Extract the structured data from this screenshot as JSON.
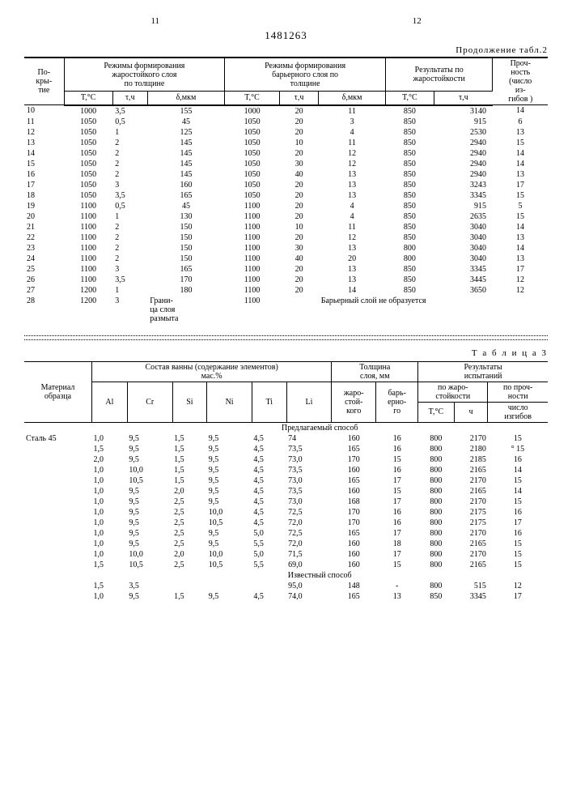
{
  "page_left": "11",
  "page_right": "12",
  "doc_number": "1481263",
  "table2": {
    "continuation": "Продолжение табл.2",
    "headers": {
      "coating": "По-\nкры-\nтие",
      "heat_layer": "Режимы формирования\nжаростойкого слоя\nпо толщине",
      "barrier_layer": "Режимы формирования\nбарьерного слоя по\nтолщине",
      "results": "Результаты по\nжаростойкости",
      "strength": "Проч-\nность\n(число\nиз-\nгибов )",
      "T": "T,°C",
      "t": "τ,ч",
      "d": "δ,мкм"
    },
    "rows": [
      {
        "n": "10",
        "t1": "1000",
        "h1": "3,5",
        "d1": "155",
        "t2": "1000",
        "h2": "20",
        "d2": "11",
        "rt": "850",
        "rh": "3140",
        "s": "14"
      },
      {
        "n": "11",
        "t1": "1050",
        "h1": "0,5",
        "d1": "45",
        "t2": "1050",
        "h2": "20",
        "d2": "3",
        "rt": "850",
        "rh": "915",
        "s": "6"
      },
      {
        "n": "12",
        "t1": "1050",
        "h1": "1",
        "d1": "125",
        "t2": "1050",
        "h2": "20",
        "d2": "4",
        "rt": "850",
        "rh": "2530",
        "s": "13"
      },
      {
        "n": "13",
        "t1": "1050",
        "h1": "2",
        "d1": "145",
        "t2": "1050",
        "h2": "10",
        "d2": "11",
        "rt": "850",
        "rh": "2940",
        "s": "15"
      },
      {
        "n": "14",
        "t1": "1050",
        "h1": "2",
        "d1": "145",
        "t2": "1050",
        "h2": "20",
        "d2": "12",
        "rt": "850",
        "rh": "2940",
        "s": "14"
      },
      {
        "n": "15",
        "t1": "1050",
        "h1": "2",
        "d1": "145",
        "t2": "1050",
        "h2": "30",
        "d2": "12",
        "rt": "850",
        "rh": "2940",
        "s": "14"
      },
      {
        "n": "16",
        "t1": "1050",
        "h1": "2",
        "d1": "145",
        "t2": "1050",
        "h2": "40",
        "d2": "13",
        "rt": "850",
        "rh": "2940",
        "s": "13"
      },
      {
        "n": "17",
        "t1": "1050",
        "h1": "3",
        "d1": "160",
        "t2": "1050",
        "h2": "20",
        "d2": "13",
        "rt": "850",
        "rh": "3243",
        "s": "17"
      },
      {
        "n": "18",
        "t1": "1050",
        "h1": "3,5",
        "d1": "165",
        "t2": "1050",
        "h2": "20",
        "d2": "13",
        "rt": "850",
        "rh": "3345",
        "s": "15"
      },
      {
        "n": "19",
        "t1": "1100",
        "h1": "0,5",
        "d1": "45",
        "t2": "1100",
        "h2": "20",
        "d2": "4",
        "rt": "850",
        "rh": "915",
        "s": "5"
      },
      {
        "n": "20",
        "t1": "1100",
        "h1": "1",
        "d1": "130",
        "t2": "1100",
        "h2": "20",
        "d2": "4",
        "rt": "850",
        "rh": "2635",
        "s": "15"
      },
      {
        "n": "21",
        "t1": "1100",
        "h1": "2",
        "d1": "150",
        "t2": "1100",
        "h2": "10",
        "d2": "11",
        "rt": "850",
        "rh": "3040",
        "s": "14"
      },
      {
        "n": "22",
        "t1": "1100",
        "h1": "2",
        "d1": "150",
        "t2": "1100",
        "h2": "20",
        "d2": "12",
        "rt": "850",
        "rh": "3040",
        "s": "13"
      },
      {
        "n": "23",
        "t1": "1100",
        "h1": "2",
        "d1": "150",
        "t2": "1100",
        "h2": "30",
        "d2": "13",
        "rt": "800",
        "rh": "3040",
        "s": "14"
      },
      {
        "n": "24",
        "t1": "1100",
        "h1": "2",
        "d1": "150",
        "t2": "1100",
        "h2": "40",
        "d2": "20",
        "rt": "800",
        "rh": "3040",
        "s": "13"
      },
      {
        "n": "25",
        "t1": "1100",
        "h1": "3",
        "d1": "165",
        "t2": "1100",
        "h2": "20",
        "d2": "13",
        "rt": "850",
        "rh": "3345",
        "s": "17"
      },
      {
        "n": "26",
        "t1": "1100",
        "h1": "3,5",
        "d1": "170",
        "t2": "1100",
        "h2": "20",
        "d2": "13",
        "rt": "850",
        "rh": "3445",
        "s": "12"
      },
      {
        "n": "27",
        "t1": "1200",
        "h1": "1",
        "d1": "180",
        "t2": "1100",
        "h2": "20",
        "d2": "14",
        "rt": "850",
        "rh": "3650",
        "s": "12"
      },
      {
        "n": "28",
        "t1": "1200",
        "h1": "3",
        "d1": "Грани-\nца слоя\nразмыта",
        "t2": "1100",
        "h2": "",
        "d2": "Барьерный слой не образуется",
        "rt": "",
        "rh": "",
        "s": ""
      }
    ]
  },
  "table3": {
    "title": "Т а б л и ц а 3",
    "headers": {
      "material": "Материал\nобразца",
      "bath": "Состав ванны (содержание элементов)\nмас.%",
      "thickness": "Толщина\nслоя, мм",
      "results": "Результаты\nиспытаний",
      "Al": "Al",
      "Cr": "Cr",
      "Si": "Si",
      "Ni": "Ni",
      "Ti": "Ti",
      "Li": "Li",
      "heat": "жаро-\nстой-\nкого",
      "bar": "барь-\nерно-\nго",
      "byheat": "по жаро-\nстойкости",
      "bystr": "по проч-\nности",
      "T": "T,°C",
      "t": "ч",
      "bends": "число\nизгибов"
    },
    "section1": "Предлагаемый способ",
    "section2": "Известный способ",
    "material": "Сталь 45",
    "rows1": [
      {
        "al": "1,0",
        "cr": "9,5",
        "si": "1,5",
        "ni": "9,5",
        "ti": "4,5",
        "li": "74",
        "h": "160",
        "b": "16",
        "T": "800",
        "t": "2170",
        "s": "15"
      },
      {
        "al": "1,5",
        "cr": "9,5",
        "si": "1,5",
        "ni": "9,5",
        "ti": "4,5",
        "li": "73,5",
        "h": "165",
        "b": "16",
        "T": "800",
        "t": "2180",
        "s": "° 15"
      },
      {
        "al": "2,0",
        "cr": "9,5",
        "si": "1,5",
        "ni": "9,5",
        "ti": "4,5",
        "li": "73,0",
        "h": "170",
        "b": "15",
        "T": "800",
        "t": "2185",
        "s": "16"
      },
      {
        "al": "1,0",
        "cr": "10,0",
        "si": "1,5",
        "ni": "9,5",
        "ti": "4,5",
        "li": "73,5",
        "h": "160",
        "b": "16",
        "T": "800",
        "t": "2165",
        "s": "14"
      },
      {
        "al": "1,0",
        "cr": "10,5",
        "si": "1,5",
        "ni": "9,5",
        "ti": "4,5",
        "li": "73,0",
        "h": "165",
        "b": "17",
        "T": "800",
        "t": "2170",
        "s": "15"
      },
      {
        "al": "1,0",
        "cr": "9,5",
        "si": "2,0",
        "ni": "9,5",
        "ti": "4,5",
        "li": "73,5",
        "h": "160",
        "b": "15",
        "T": "800",
        "t": "2165",
        "s": "14"
      },
      {
        "al": "1,0",
        "cr": "9,5",
        "si": "2,5",
        "ni": "9,5",
        "ti": "4,5",
        "li": "73,0",
        "h": "168",
        "b": "17",
        "T": "800",
        "t": "2170",
        "s": "15"
      },
      {
        "al": "1,0",
        "cr": "9,5",
        "si": "2,5",
        "ni": "10,0",
        "ti": "4,5",
        "li": "72,5",
        "h": "170",
        "b": "16",
        "T": "800",
        "t": "2175",
        "s": "16"
      },
      {
        "al": "1,0",
        "cr": "9,5",
        "si": "2,5",
        "ni": "10,5",
        "ti": "4,5",
        "li": "72,0",
        "h": "170",
        "b": "16",
        "T": "800",
        "t": "2175",
        "s": "17"
      },
      {
        "al": "1,0",
        "cr": "9,5",
        "si": "2,5",
        "ni": "9,5",
        "ti": "5,0",
        "li": "72,5",
        "h": "165",
        "b": "17",
        "T": "800",
        "t": "2170",
        "s": "16"
      },
      {
        "al": "1,0",
        "cr": "9,5",
        "si": "2,5",
        "ni": "9,5",
        "ti": "5,5",
        "li": "72,0",
        "h": "160",
        "b": "18",
        "T": "800",
        "t": "2165",
        "s": "15"
      },
      {
        "al": "1,0",
        "cr": "10,0",
        "si": "2,0",
        "ni": "10,0",
        "ti": "5,0",
        "li": "71,5",
        "h": "160",
        "b": "17",
        "T": "800",
        "t": "2170",
        "s": "15"
      },
      {
        "al": "1,5",
        "cr": "10,5",
        "si": "2,5",
        "ni": "10,5",
        "ti": "5,5",
        "li": "69,0",
        "h": "160",
        "b": "15",
        "T": "800",
        "t": "2165",
        "s": "15"
      }
    ],
    "rows2": [
      {
        "al": "1,5",
        "cr": "3,5",
        "si": "",
        "ni": "",
        "ti": "",
        "li": "95,0",
        "h": "148",
        "b": "-",
        "T": "800",
        "t": "515",
        "s": "12"
      },
      {
        "al": "1,0",
        "cr": "9,5",
        "si": "1,5",
        "ni": "9,5",
        "ti": "4,5",
        "li": "74,0",
        "h": "165",
        "b": "13",
        "T": "850",
        "t": "3345",
        "s": "17"
      }
    ]
  }
}
